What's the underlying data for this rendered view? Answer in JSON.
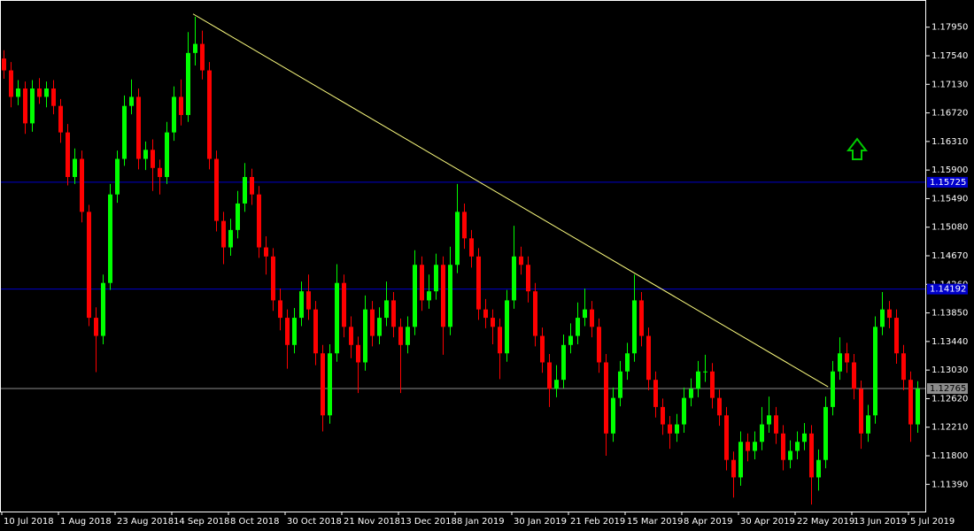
{
  "chart_data": {
    "type": "candlestick",
    "categories": [
      "10 Jul 2018",
      null,
      null,
      null,
      null,
      null,
      null,
      null,
      "1 Aug 2018",
      null,
      null,
      null,
      null,
      null,
      null,
      null,
      "23 Aug 2018",
      null,
      null,
      null,
      null,
      null,
      null,
      null,
      "14 Sep 2018",
      null,
      null,
      null,
      null,
      null,
      null,
      null,
      "8 Oct 2018",
      null,
      null,
      null,
      null,
      null,
      null,
      null,
      "30 Oct 2018",
      null,
      null,
      null,
      null,
      null,
      null,
      null,
      "21 Nov 2018",
      null,
      null,
      null,
      null,
      null,
      null,
      null,
      "13 Dec 2018",
      null,
      null,
      null,
      null,
      null,
      null,
      null,
      "8 Jan 2019",
      null,
      null,
      null,
      null,
      null,
      null,
      null,
      "30 Jan 2019",
      null,
      null,
      null,
      null,
      null,
      null,
      null,
      "21 Feb 2019",
      null,
      null,
      null,
      null,
      null,
      null,
      null,
      "15 Mar 2019",
      null,
      null,
      null,
      null,
      null,
      null,
      null,
      "8 Apr 2019",
      null,
      null,
      null,
      null,
      null,
      null,
      null,
      "30 Apr 2019",
      null,
      null,
      null,
      null,
      null,
      null,
      null,
      "22 May 2019",
      null,
      null,
      null,
      null,
      null,
      null,
      null,
      "13 Jun 2019",
      null,
      null,
      null,
      null,
      null,
      null,
      null,
      "5 Jul 2019",
      null
    ],
    "open": [
      1.175,
      1.1733,
      1.1695,
      1.1707,
      1.1657,
      1.1707,
      1.1695,
      1.1707,
      1.1682,
      1.1644,
      1.158,
      1.1606,
      1.153,
      1.1378,
      1.1352,
      1.1428,
      1.1555,
      1.1606,
      1.1682,
      1.1695,
      1.1606,
      1.1619,
      1.1593,
      1.158,
      1.1644,
      1.1695,
      1.1669,
      1.1758,
      1.1771,
      1.1733,
      1.1606,
      1.1517,
      1.1479,
      1.1504,
      1.1542,
      1.158,
      1.1555,
      1.1479,
      1.1466,
      1.1403,
      1.1378,
      1.1339,
      1.1378,
      1.1416,
      1.139,
      1.1327,
      1.1238,
      1.1327,
      1.1428,
      1.1365,
      1.1339,
      1.1314,
      1.139,
      1.1352,
      1.1378,
      1.1403,
      1.1365,
      1.1339,
      1.1365,
      1.1454,
      1.1403,
      1.1416,
      1.1454,
      1.1365,
      1.1454,
      1.153,
      1.1492,
      1.1466,
      1.139,
      1.1378,
      1.1365,
      1.1327,
      1.1403,
      1.1466,
      1.1454,
      1.1416,
      1.1352,
      1.1314,
      1.1276,
      1.1289,
      1.1339,
      1.1352,
      1.1378,
      1.139,
      1.1365,
      1.1314,
      1.1212,
      1.1263,
      1.1301,
      1.1327,
      1.1403,
      1.1352,
      1.1289,
      1.125,
      1.1225,
      1.1212,
      1.1225,
      1.1263,
      1.1276,
      1.1301,
      1.1301,
      1.1263,
      1.1238,
      1.1174,
      1.1149,
      1.12,
      1.1187,
      1.12,
      1.1225,
      1.1238,
      1.1212,
      1.1174,
      1.1187,
      1.12,
      1.1212,
      1.1149,
      1.1174,
      1.125,
      1.1301,
      1.1327,
      1.1314,
      1.1276,
      1.1212,
      1.1238,
      1.1365,
      1.139,
      1.1378,
      1.1327,
      1.1289,
      1.1225
    ],
    "high": [
      1.1762,
      1.1745,
      1.1719,
      1.1717,
      1.1719,
      1.1722,
      1.1717,
      1.1719,
      1.1692,
      1.1656,
      1.1621,
      1.1618,
      1.154,
      1.1393,
      1.144,
      1.157,
      1.1618,
      1.1697,
      1.172,
      1.1707,
      1.1631,
      1.1634,
      1.1605,
      1.1659,
      1.171,
      1.172,
      1.1788,
      1.181,
      1.179,
      1.1745,
      1.1618,
      1.153,
      1.152,
      1.156,
      1.16,
      1.1592,
      1.1567,
      1.1495,
      1.1478,
      1.142,
      1.139,
      1.1392,
      1.143,
      1.144,
      1.1402,
      1.1339,
      1.134,
      1.1455,
      1.144,
      1.138,
      1.1351,
      1.141,
      1.1402,
      1.1393,
      1.143,
      1.1415,
      1.1377,
      1.138,
      1.1475,
      1.1466,
      1.144,
      1.147,
      1.1466,
      1.148,
      1.157,
      1.1542,
      1.1504,
      1.1478,
      1.1405,
      1.139,
      1.1377,
      1.1418,
      1.151,
      1.148,
      1.1466,
      1.1428,
      1.1364,
      1.1326,
      1.131,
      1.1354,
      1.137,
      1.14,
      1.142,
      1.1402,
      1.1377,
      1.1326,
      1.1278,
      1.1316,
      1.1342,
      1.144,
      1.1415,
      1.1364,
      1.1301,
      1.1262,
      1.1237,
      1.124,
      1.1278,
      1.1291,
      1.1316,
      1.1325,
      1.1313,
      1.1275,
      1.125,
      1.1186,
      1.1215,
      1.1212,
      1.1215,
      1.125,
      1.1265,
      1.125,
      1.1224,
      1.1202,
      1.1215,
      1.1227,
      1.1224,
      1.1189,
      1.1265,
      1.1316,
      1.135,
      1.1342,
      1.1326,
      1.1288,
      1.1253,
      1.138,
      1.1415,
      1.1402,
      1.139,
      1.1339,
      1.1301,
      1.1287
    ],
    "low": [
      1.1721,
      1.168,
      1.1683,
      1.1642,
      1.1645,
      1.1685,
      1.168,
      1.167,
      1.1629,
      1.1568,
      1.157,
      1.1515,
      1.1366,
      1.13,
      1.134,
      1.1418,
      1.1543,
      1.1596,
      1.167,
      1.1591,
      1.159,
      1.156,
      1.1555,
      1.157,
      1.1632,
      1.1654,
      1.1659,
      1.174,
      1.172,
      1.1591,
      1.1502,
      1.1455,
      1.1467,
      1.1492,
      1.153,
      1.154,
      1.1464,
      1.144,
      1.1388,
      1.136,
      1.1305,
      1.1327,
      1.1366,
      1.1375,
      1.131,
      1.1215,
      1.1226,
      1.1315,
      1.135,
      1.132,
      1.127,
      1.1302,
      1.1337,
      1.134,
      1.1366,
      1.135,
      1.127,
      1.1327,
      1.1353,
      1.1388,
      1.1391,
      1.1404,
      1.1325,
      1.1353,
      1.1442,
      1.1477,
      1.145,
      1.1375,
      1.1363,
      1.134,
      1.129,
      1.1315,
      1.1391,
      1.144,
      1.14,
      1.1337,
      1.1299,
      1.125,
      1.1264,
      1.1277,
      1.1327,
      1.134,
      1.1366,
      1.135,
      1.1299,
      1.118,
      1.12,
      1.1251,
      1.1289,
      1.1315,
      1.1337,
      1.1274,
      1.1235,
      1.121,
      1.119,
      1.12,
      1.1213,
      1.1251,
      1.1264,
      1.1286,
      1.1248,
      1.1223,
      1.1159,
      1.112,
      1.1137,
      1.1172,
      1.1175,
      1.1188,
      1.1213,
      1.1197,
      1.1159,
      1.1162,
      1.1175,
      1.1188,
      1.111,
      1.113,
      1.1162,
      1.1238,
      1.1289,
      1.1299,
      1.1261,
      1.119,
      1.12,
      1.1226,
      1.1353,
      1.1363,
      1.1312,
      1.1274,
      1.12,
      1.1213
    ],
    "close": [
      1.1733,
      1.1695,
      1.1707,
      1.1657,
      1.1707,
      1.1695,
      1.1707,
      1.1682,
      1.1644,
      1.158,
      1.1606,
      1.153,
      1.1378,
      1.1352,
      1.1428,
      1.1555,
      1.1606,
      1.1682,
      1.1695,
      1.1606,
      1.1619,
      1.1593,
      1.158,
      1.1644,
      1.1695,
      1.1669,
      1.1758,
      1.1771,
      1.1733,
      1.1606,
      1.1517,
      1.1479,
      1.1504,
      1.1542,
      1.158,
      1.1555,
      1.1479,
      1.1466,
      1.1403,
      1.1378,
      1.1339,
      1.1378,
      1.1416,
      1.139,
      1.1327,
      1.1238,
      1.1327,
      1.1428,
      1.1365,
      1.1339,
      1.1314,
      1.139,
      1.1352,
      1.1378,
      1.1403,
      1.1365,
      1.1339,
      1.1365,
      1.1454,
      1.1403,
      1.1416,
      1.1454,
      1.1365,
      1.1454,
      1.153,
      1.1492,
      1.1466,
      1.139,
      1.1378,
      1.1365,
      1.1327,
      1.1403,
      1.1466,
      1.1454,
      1.1416,
      1.1352,
      1.1314,
      1.1276,
      1.1289,
      1.1339,
      1.1352,
      1.1378,
      1.139,
      1.1365,
      1.1314,
      1.1212,
      1.1263,
      1.1301,
      1.1327,
      1.1403,
      1.1352,
      1.1289,
      1.125,
      1.1225,
      1.1212,
      1.1225,
      1.1263,
      1.1276,
      1.1301,
      1.1301,
      1.1263,
      1.1238,
      1.1174,
      1.1149,
      1.12,
      1.1187,
      1.12,
      1.1225,
      1.1238,
      1.1212,
      1.1174,
      1.1187,
      1.12,
      1.1212,
      1.1149,
      1.1174,
      1.125,
      1.1301,
      1.1327,
      1.1314,
      1.1276,
      1.1212,
      1.1238,
      1.1365,
      1.139,
      1.1378,
      1.1327,
      1.1289,
      1.1225,
      1.1276
    ],
    "up_color": "#00ff00",
    "down_color": "#ff0000",
    "ylim": [
      1.11,
      1.1834
    ],
    "yticks": [
      {
        "value": 1.1795,
        "label": "1.17950"
      },
      {
        "value": 1.1754,
        "label": "1.17540"
      },
      {
        "value": 1.1713,
        "label": "1.17130"
      },
      {
        "value": 1.1672,
        "label": "1.16720"
      },
      {
        "value": 1.1631,
        "label": "1.16310"
      },
      {
        "value": 1.159,
        "label": "1.15900"
      },
      {
        "value": 1.1549,
        "label": "1.15490"
      },
      {
        "value": 1.1508,
        "label": "1.15080"
      },
      {
        "value": 1.1467,
        "label": "1.14670"
      },
      {
        "value": 1.1426,
        "label": "1.14260"
      },
      {
        "value": 1.1385,
        "label": "1.13850"
      },
      {
        "value": 1.1344,
        "label": "1.13440"
      },
      {
        "value": 1.1303,
        "label": "1.13030"
      },
      {
        "value": 1.1262,
        "label": "1.12620"
      },
      {
        "value": 1.1221,
        "label": "1.12210"
      },
      {
        "value": 1.118,
        "label": "1.11800"
      },
      {
        "value": 1.1139,
        "label": "1.11390"
      }
    ],
    "levels": [
      {
        "value": 1.15725,
        "label": "1.15725",
        "color": "#0000cc"
      },
      {
        "value": 1.14192,
        "label": "1.14192",
        "color": "#0000cc"
      },
      {
        "value": 1.12765,
        "label": "1.12765",
        "color": "#8c8c8c"
      }
    ],
    "trendline": {
      "x": [
        26.75,
        116.4
      ],
      "y": [
        1.1814,
        1.1279
      ],
      "color": "#ffff80"
    }
  }
}
